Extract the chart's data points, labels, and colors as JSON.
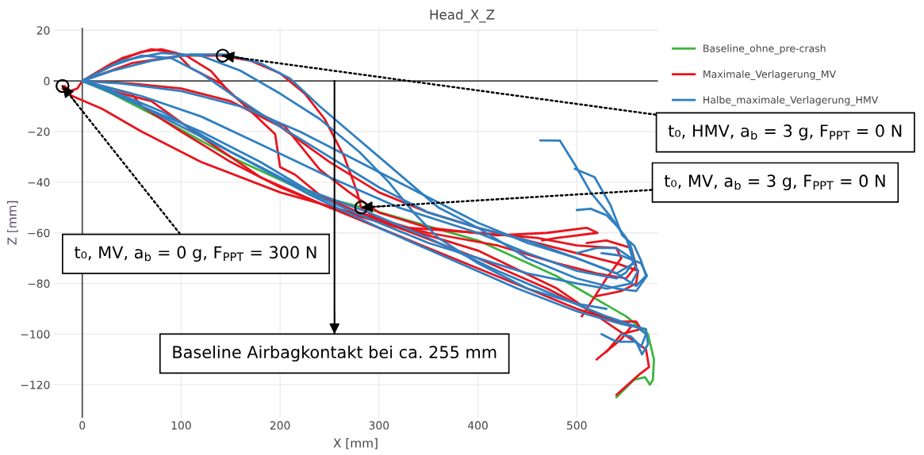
{
  "chart_data": {
    "type": "line",
    "title": "Head_X_Z",
    "xlabel": "X [mm]",
    "ylabel": "Z [mm]",
    "xlim": [
      -29,
      582
    ],
    "ylim": [
      -133,
      21
    ],
    "xticks": [
      0,
      100,
      200,
      300,
      400,
      500
    ],
    "yticks": [
      20,
      0,
      {
        "value": -20,
        "label": "−20"
      },
      {
        "value": -40,
        "label": "−40"
      },
      {
        "value": -60,
        "label": "−60"
      },
      {
        "value": -80,
        "label": "−80"
      },
      {
        "value": -100,
        "label": "−100"
      },
      {
        "value": -120,
        "label": "−120"
      }
    ],
    "grid": true,
    "legend": "top right",
    "marker": "none",
    "line_style": "solid",
    "ref_lines": [
      {
        "axis": "x",
        "value": 255,
        "label": "Baseline Airbagkontakt bei ca. 255 mm",
        "color": "#000000"
      }
    ],
    "series": [
      {
        "name": "Baseline_ohne_pre-crash",
        "color": "#3cb43c",
        "x": [
          0,
          30,
          80,
          150,
          233,
          284,
          400,
          479,
          550,
          572,
          578,
          577,
          574,
          569,
          558,
          540
        ],
        "values": [
          0,
          -5,
          -15,
          -30,
          -45,
          -50,
          -63,
          -77,
          -93,
          -100,
          -110,
          -118,
          -120,
          -117,
          -118,
          -125
        ]
      },
      {
        "name": "Maximale_Verlagerung_MV",
        "color": "#e8141c",
        "x": [
          0,
          -5,
          -12,
          -18,
          -20,
          -10,
          20,
          60,
          120,
          200,
          300,
          400,
          480,
          540,
          570,
          573,
          563,
          540
        ],
        "values": [
          0,
          -3,
          -4,
          -2,
          -3,
          -6,
          -11,
          -20,
          -32,
          -44,
          -55,
          -67,
          -82,
          -98,
          -106,
          -113,
          -116,
          -124
        ]
      },
      {
        "color": "#e8141c",
        "x": [
          0,
          30,
          60,
          80,
          105,
          130,
          150,
          175,
          205,
          240,
          270,
          300,
          350,
          420,
          470,
          510,
          521,
          480,
          465
        ],
        "values": [
          0,
          7,
          11.5,
          12.5,
          10,
          4,
          -5,
          -12,
          -18,
          -35,
          -44,
          -52,
          -58,
          -61,
          -60,
          -58,
          -60,
          -62,
          -63
        ]
      },
      {
        "color": "#e8141c",
        "x": [
          0,
          40,
          70,
          95,
          110,
          125,
          140,
          165,
          195,
          200,
          215,
          240,
          280,
          330,
          400,
          460,
          500,
          540,
          545,
          530,
          505
        ],
        "values": [
          0,
          9,
          12.5,
          11,
          5,
          2,
          -1,
          -10,
          -21,
          -34,
          -37,
          -45,
          -52,
          -58,
          -60,
          -62,
          -65,
          -66,
          -70,
          -78,
          -93
        ]
      },
      {
        "color": "#e8141c",
        "x": [
          0,
          50,
          100,
          140,
          170,
          200,
          225,
          245,
          265,
          278,
          282,
          300,
          350,
          420,
          480,
          520,
          550,
          560,
          555,
          530,
          510
        ],
        "values": [
          0,
          7,
          10,
          10,
          8,
          3,
          -5,
          -15,
          -30,
          -44,
          -50,
          -55,
          -60,
          -65,
          -72,
          -76,
          -78,
          -73,
          -66,
          -63,
          -64
        ]
      },
      {
        "color": "#e8141c",
        "x": [
          0,
          50,
          100,
          150,
          200,
          250,
          300,
          350,
          400,
          450,
          500,
          540,
          562,
          560,
          545,
          520
        ],
        "values": [
          0,
          -1,
          -3,
          -8,
          -18,
          -32,
          -44,
          -52,
          -58,
          -63,
          -68,
          -72,
          -75,
          -80,
          -83,
          -85
        ]
      },
      {
        "color": "#e8141c",
        "x": [
          0,
          30,
          50,
          60,
          100,
          150,
          200,
          250,
          300,
          350,
          400,
          450,
          500,
          540,
          560,
          565,
          545,
          530
        ],
        "values": [
          0,
          -3,
          -5,
          -10,
          -20,
          -32,
          -42,
          -50,
          -58,
          -66,
          -74,
          -82,
          -90,
          -95,
          -95,
          -98,
          -100,
          -107
        ]
      },
      {
        "color": "#e8141c",
        "x": [
          0,
          30,
          70,
          120,
          180,
          250,
          320,
          400,
          470,
          520,
          555,
          545,
          520
        ],
        "values": [
          0,
          -4,
          -8,
          -22,
          -38,
          -50,
          -58,
          -70,
          -82,
          -92,
          -97,
          -102,
          -110
        ]
      },
      {
        "name": "Halbe_maximale_Verlagerung_HMV",
        "color": "#2f7fc1",
        "x": [
          0,
          30,
          70,
          110,
          145,
          180,
          210,
          240,
          270,
          300,
          330,
          360,
          400,
          450,
          500,
          540,
          560,
          571,
          565,
          545,
          525
        ],
        "values": [
          0,
          4,
          8,
          10.5,
          10.5,
          7,
          1,
          -10,
          -20,
          -30,
          -40,
          -50,
          -58,
          -70,
          -78,
          -82,
          -83,
          -77,
          -72,
          -69,
          -68
        ]
      },
      {
        "color": "#2f7fc1",
        "x": [
          0,
          30,
          60,
          90,
          120,
          150,
          200,
          250,
          300,
          350,
          400,
          450,
          500,
          540,
          558,
          550,
          540,
          530,
          514,
          500
        ],
        "values": [
          0,
          6,
          10,
          9,
          3,
          -5,
          -18,
          -30,
          -42,
          -52,
          -58,
          -63,
          -70,
          -76,
          -72,
          -62,
          -57,
          -53,
          -50.5,
          -51
        ]
      },
      {
        "color": "#2f7fc1",
        "x": [
          0,
          40,
          100,
          160,
          220,
          280,
          340,
          400,
          450,
          500,
          540,
          560,
          570,
          565,
          558,
          546,
          534,
          518,
          498
        ],
        "values": [
          0,
          -1,
          -4,
          -10,
          -20,
          -32,
          -44,
          -56,
          -64,
          -70,
          -76,
          -81,
          -77,
          -71,
          -65,
          -61,
          -49,
          -38,
          -34.7
        ]
      },
      {
        "color": "#2f7fc1",
        "x": [
          0,
          30,
          60,
          120,
          180,
          250,
          320,
          400,
          450,
          500,
          540,
          550,
          558,
          554,
          534,
          514,
          498,
          483,
          463
        ],
        "values": [
          0,
          -3,
          -6,
          -14,
          -25,
          -38,
          -50,
          -60,
          -68,
          -75,
          -78,
          -75.6,
          -71,
          -64.5,
          -53.5,
          -44,
          -33,
          -23.6,
          -23.5
        ]
      },
      {
        "color": "#2f7fc1",
        "x": [
          0,
          20,
          60,
          120,
          180,
          240,
          300,
          350,
          400,
          450,
          500,
          530,
          555,
          562,
          555,
          540,
          520,
          500
        ],
        "values": [
          0,
          -3,
          -10,
          -20,
          -32,
          -46,
          -56,
          -64,
          -70,
          -76,
          -80,
          -82,
          -80,
          -75,
          -70,
          -66,
          -66,
          -68
        ]
      },
      {
        "color": "#2f7fc1",
        "x": [
          0,
          30,
          80,
          150,
          220,
          290,
          350,
          420,
          480,
          530,
          560,
          570,
          565,
          555,
          545
        ],
        "values": [
          0,
          -4,
          -12,
          -28,
          -42,
          -52,
          -62,
          -75,
          -85,
          -93,
          -97,
          -100,
          -105,
          -101,
          -100
        ]
      },
      {
        "color": "#2f7fc1",
        "x": [
          0,
          40,
          100,
          160,
          230,
          300,
          370,
          440,
          500,
          545,
          570,
          572,
          566,
          560,
          540,
          525
        ],
        "values": [
          0,
          -6,
          -18,
          -30,
          -45,
          -58,
          -70,
          -82,
          -91,
          -96,
          -98,
          -104,
          -108,
          -103,
          -103,
          -100
        ]
      },
      {
        "color": "#2f7fc1",
        "x": [
          0,
          40,
          80,
          120,
          160,
          200,
          240,
          280,
          310,
          335,
          360,
          400,
          450,
          500,
          530
        ],
        "values": [
          0,
          8,
          11,
          10,
          4,
          -5,
          -15,
          -28,
          -40,
          -52,
          -62,
          -72,
          -82,
          -88,
          -90
        ]
      }
    ],
    "annotations": [
      {
        "text": "t₀, HMV, a$_{b}$ = 3 g, F$_{PPT}$ = 0 N",
        "x": 142,
        "y": 10
      },
      {
        "text": "t₀, MV, a$_{b}$ = 3 g, F$_{PPT}$ = 0 N",
        "x": 282,
        "y": -50
      },
      {
        "text": "t₀, MV, a$_{b}$ = 0 g, F$_{PPT}$ = 300 N",
        "x": -20,
        "y": -2
      }
    ]
  }
}
